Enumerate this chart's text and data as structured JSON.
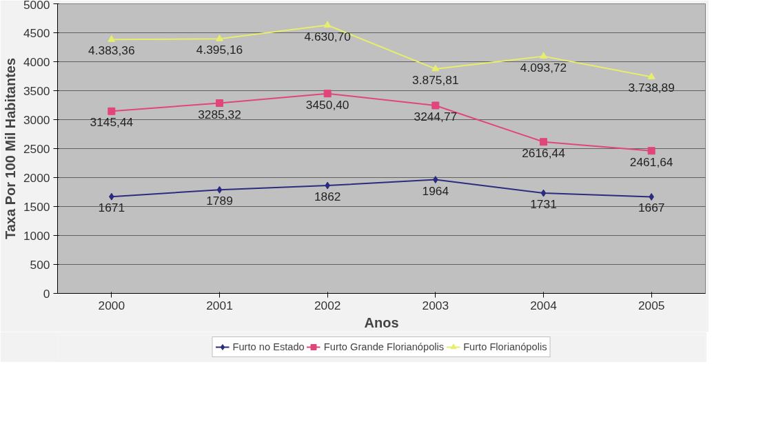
{
  "chart_data": {
    "type": "line",
    "xlabel": "Anos",
    "ylabel": "Taxa Por 100 Mil Habitantes",
    "categories": [
      "2000",
      "2001",
      "2002",
      "2003",
      "2004",
      "2005"
    ],
    "series": [
      {
        "name": "Furto no Estado",
        "color": "#2b2b7f",
        "marker": "diamond",
        "values": [
          1671,
          1789,
          1862,
          1964,
          1731,
          1667
        ],
        "value_labels": [
          "1671",
          "1789",
          "1862",
          "1964",
          "1731",
          "1667"
        ]
      },
      {
        "name": "Furto Grande Florianópolis",
        "color": "#e0457b",
        "marker": "square",
        "values": [
          3145.44,
          3285.32,
          3450.4,
          3244.77,
          2616.44,
          2461.64
        ],
        "value_labels": [
          "3145,44",
          "3285,32",
          "3450,40",
          "3244,77",
          "2616,44",
          "2461,64"
        ]
      },
      {
        "name": "Furto Florianópolis",
        "color": "#e6ee6c",
        "marker": "triangle",
        "values": [
          4383.36,
          4395.16,
          4630.7,
          3875.81,
          4093.72,
          3738.89
        ],
        "value_labels": [
          "4.383,36",
          "4.395,16",
          "4.630,70",
          "3.875,81",
          "4.093,72",
          "3.738,89"
        ]
      }
    ],
    "ylim": [
      0,
      5000
    ],
    "yticks": [
      0,
      500,
      1000,
      1500,
      2000,
      2500,
      3000,
      3500,
      4000,
      4500,
      5000
    ],
    "grid": "y",
    "legend": "bottom"
  }
}
